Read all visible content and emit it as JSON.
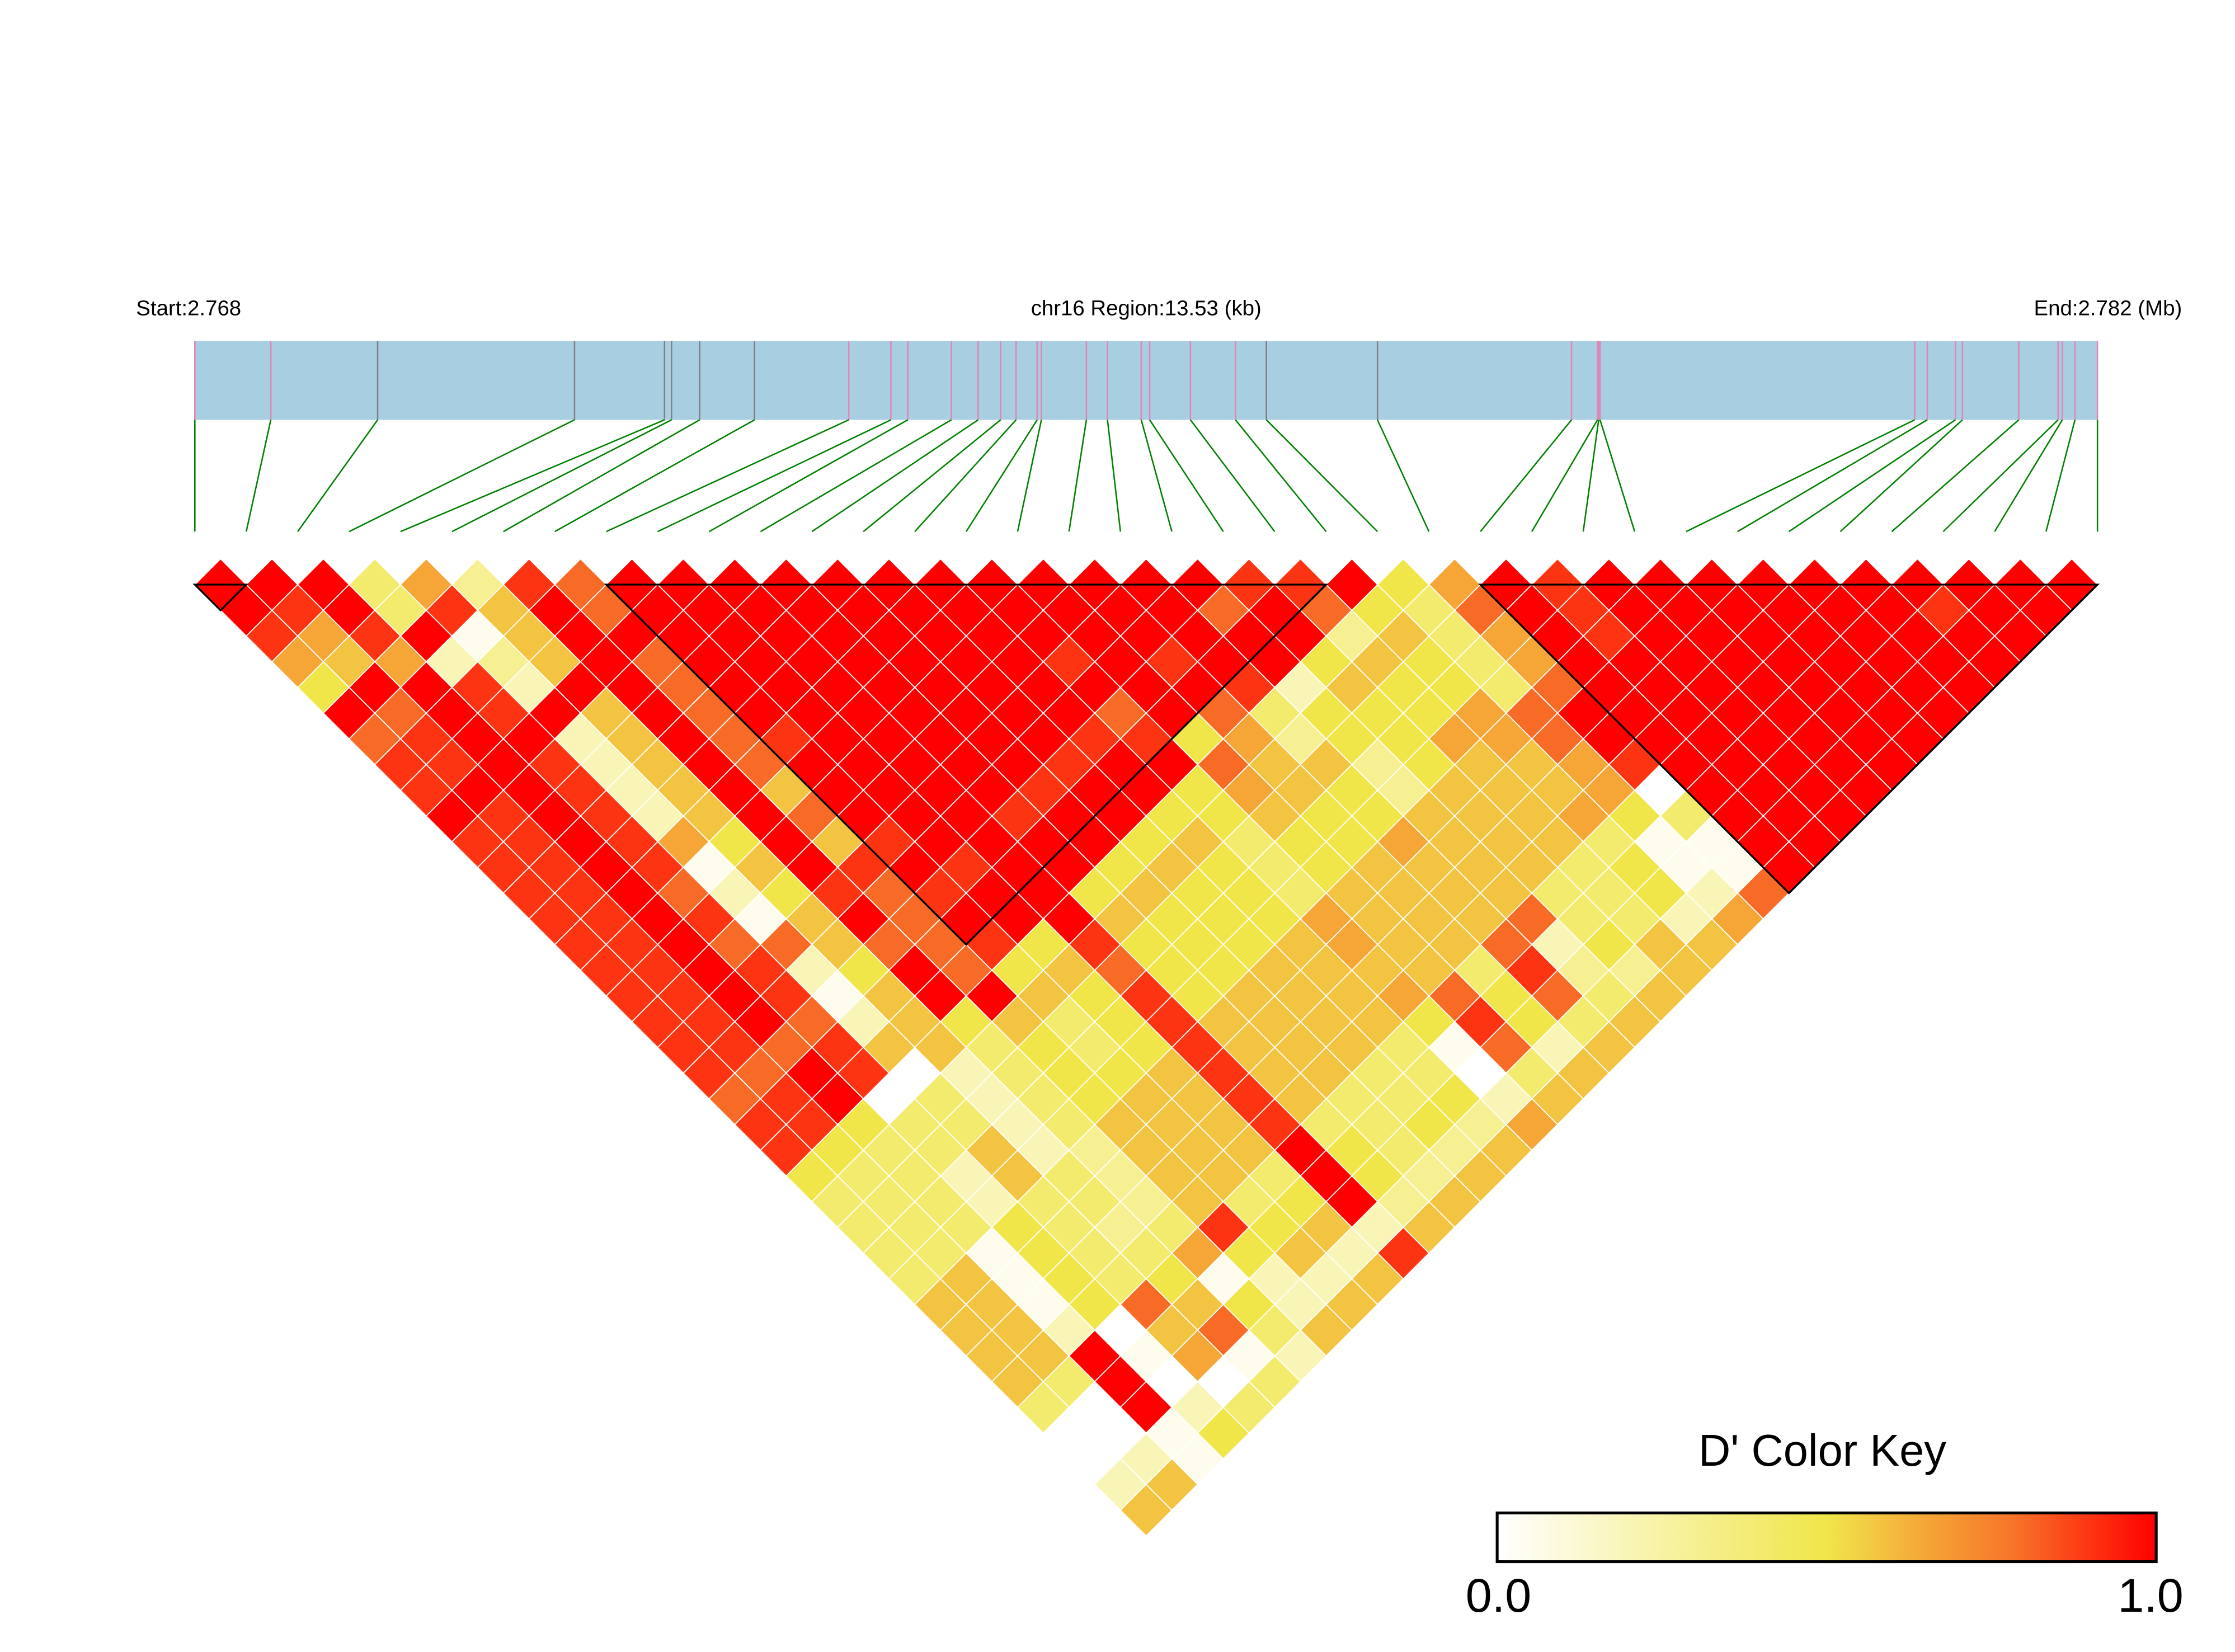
{
  "chart_data": {
    "type": "heatmap",
    "subtype": "linkage-disequilibrium triangle",
    "header": {
      "start_label": "Start:2.768",
      "region_label": "chr16 Region:13.53 (kb)",
      "end_label": "End:2.782 (Mb)"
    },
    "snp_positions_mb": [
      2.768,
      2.76854,
      2.7693,
      2.7707,
      2.77134,
      2.77139,
      2.77159,
      2.77198,
      2.77265,
      2.77295,
      2.77307,
      2.77338,
      2.77357,
      2.77373,
      2.77384,
      2.77399,
      2.77402,
      2.77434,
      2.77449,
      2.77473,
      2.77479,
      2.77508,
      2.7754,
      2.77562,
      2.77641,
      2.77779,
      2.777975,
      2.777983,
      2.777993,
      2.78023,
      2.78032,
      2.78052,
      2.78057,
      2.78097,
      2.78125,
      2.78128,
      2.78137,
      2.78153
    ],
    "tick_colors": [
      "#e384b6",
      "#e384b6",
      "#808080",
      "#808080",
      "#808080",
      "#808080",
      "#808080",
      "#808080",
      "#e384b6",
      "#e384b6",
      "#e384b6",
      "#e384b6",
      "#e384b6",
      "#e384b6",
      "#e384b6",
      "#e384b6",
      "#e384b6",
      "#e384b6",
      "#e384b6",
      "#e384b6",
      "#e384b6",
      "#e384b6",
      "#e384b6",
      "#808080",
      "#808080",
      "#e384b6",
      "#e384b6",
      "#e384b6",
      "#e384b6",
      "#e384b6",
      "#e384b6",
      "#e384b6",
      "#e384b6",
      "#e384b6",
      "#e384b6",
      "#e384b6",
      "#e384b6",
      "#e384b6"
    ],
    "gene_bar_color": "#a8cee2",
    "connector_color": "#008000",
    "dprime_by_snp_distance": [
      [
        1,
        1,
        1,
        0.4,
        0.65,
        0.3,
        0.9,
        0.8,
        1,
        1,
        1,
        1,
        1,
        1,
        1,
        1,
        1,
        1,
        1,
        1,
        0.9,
        0.9,
        1,
        0.5,
        0.65,
        1,
        0.9,
        1,
        1,
        1,
        1,
        1,
        1,
        1,
        1,
        1,
        1
      ],
      [
        1,
        0.9,
        1,
        0.4,
        0.9,
        0.58,
        1,
        0.8,
        1,
        1,
        1,
        1,
        1,
        1,
        1,
        1,
        1,
        1,
        1,
        0.8,
        1,
        0.8,
        0.5,
        0.4,
        0.8,
        1,
        0.9,
        1,
        1,
        1,
        1,
        1,
        1,
        0.9,
        1,
        1
      ],
      [
        0.9,
        0.65,
        0.9,
        1,
        0.05,
        0.58,
        1,
        1,
        1,
        1,
        1,
        1,
        1,
        1,
        1,
        1,
        1,
        1,
        1,
        1,
        1,
        0.3,
        0.58,
        0.4,
        0.65,
        1,
        0.9,
        1,
        1,
        1,
        1,
        1,
        1,
        1,
        1
      ],
      [
        0.65,
        0.58,
        0.65,
        0.2,
        0.3,
        0.58,
        1,
        0.8,
        1,
        1,
        1,
        1,
        1,
        1,
        1,
        0.9,
        1,
        0.9,
        1,
        1,
        0.5,
        0.58,
        0.5,
        0.4,
        0.65,
        1,
        1,
        1,
        1,
        1,
        1,
        1,
        1,
        1
      ],
      [
        0.5,
        1,
        1,
        0.9,
        0.2,
        1,
        1,
        0.8,
        1,
        1,
        1,
        1,
        1,
        1,
        1,
        1,
        1,
        1,
        0.9,
        0.2,
        0.58,
        0.5,
        0.5,
        0.4,
        0.8,
        1,
        1,
        1,
        1,
        1,
        1,
        1,
        1
      ],
      [
        1,
        0.8,
        1,
        0.9,
        1,
        0.58,
        1,
        0.8,
        1,
        1,
        1,
        1,
        1,
        1,
        1,
        0.8,
        1,
        0.8,
        0.4,
        0.5,
        0.5,
        0.5,
        0.65,
        0.8,
        1,
        1,
        1,
        1,
        1,
        1,
        1,
        1
      ],
      [
        0.8,
        0.9,
        1,
        1,
        0.2,
        0.58,
        1,
        0.8,
        0.9,
        1,
        1,
        1,
        1,
        1,
        0.9,
        0.9,
        0.5,
        0.65,
        0.3,
        0.5,
        0.5,
        0.65,
        0.65,
        0.8,
        1,
        1,
        1,
        1,
        1,
        1,
        1
      ],
      [
        0.9,
        0.9,
        1,
        0.9,
        0.2,
        0.58,
        1,
        0.8,
        1,
        1,
        1,
        1,
        1,
        0.9,
        1,
        1,
        0.8,
        0.58,
        0.58,
        0.3,
        0.5,
        0.58,
        0.58,
        0.65,
        0.9,
        1,
        1,
        1,
        1,
        1
      ],
      [
        0.9,
        1,
        1,
        0.9,
        0.2,
        0.58,
        1,
        0.58,
        1,
        1,
        1,
        1,
        0.9,
        1,
        1,
        0.5,
        0.65,
        0.58,
        0.5,
        0.3,
        0.58,
        0.58,
        0.58,
        0.65,
        0,
        1,
        1,
        1,
        1
      ],
      [
        1,
        0.9,
        1,
        0.9,
        0.2,
        0.58,
        1,
        0.8,
        1,
        1,
        1,
        0.9,
        1,
        1,
        0.5,
        0.5,
        0.58,
        0.5,
        0.5,
        0.58,
        0.58,
        0.58,
        0.65,
        0.5,
        0.4,
        1,
        1,
        1
      ],
      [
        0.9,
        0.9,
        1,
        0.9,
        0.65,
        0.5,
        1,
        0.58,
        0.9,
        1,
        1,
        1,
        1,
        0.5,
        0.58,
        0.4,
        0.5,
        0.5,
        0.65,
        0.58,
        0.58,
        0.58,
        0.4,
        0.05,
        0.05,
        1,
        1
      ],
      [
        0.9,
        0.9,
        1,
        0.9,
        0.05,
        0.58,
        1,
        0.9,
        1,
        0.9,
        1,
        1,
        0.5,
        0.58,
        0.5,
        0.4,
        0.5,
        0.58,
        0.58,
        0.58,
        0.58,
        0.4,
        0.5,
        0.05,
        0.05,
        1
      ],
      [
        0.9,
        0.9,
        1,
        0.8,
        0.2,
        0.5,
        0.9,
        0.8,
        0.9,
        1,
        1,
        0.5,
        0.58,
        0.5,
        0.5,
        0.4,
        0.58,
        0.58,
        0.58,
        0.58,
        0.4,
        0.4,
        0.5,
        0.2,
        0.8
      ],
      [
        0.9,
        0.9,
        1,
        0.9,
        0.05,
        0.58,
        1,
        0.8,
        1,
        1,
        1,
        0.58,
        0.5,
        0.5,
        0.5,
        0.65,
        0.58,
        0.58,
        0.58,
        0.8,
        0.4,
        0.4,
        0.2,
        0.65
      ],
      [
        0.9,
        0.9,
        1,
        0.8,
        0.8,
        0.58,
        0.8,
        0.8,
        0.9,
        0.5,
        0.9,
        0.5,
        0.5,
        0.5,
        0.58,
        0.65,
        0.58,
        0.58,
        0.8,
        0.2,
        0.5,
        0.58,
        0.58
      ],
      [
        0.9,
        0.9,
        1,
        0.9,
        0.2,
        0.5,
        1,
        0.8,
        0.5,
        0.58,
        0.8,
        0.5,
        0.5,
        0.58,
        0.58,
        0.58,
        0.58,
        0.4,
        0.9,
        0.3,
        0.3,
        0.58
      ],
      [
        0.9,
        0.9,
        1,
        0.9,
        0.05,
        0.58,
        1,
        1,
        0.58,
        0.5,
        0.9,
        0.5,
        0.58,
        0.58,
        0.58,
        0.65,
        0.8,
        0.5,
        0.8,
        0.4,
        0.58
      ],
      [
        0.9,
        0.9,
        1,
        0.8,
        0.2,
        0.58,
        0.5,
        0.58,
        0.4,
        0.5,
        0.9,
        0.58,
        0.58,
        0.58,
        0.58,
        0.5,
        0.9,
        0.5,
        0.4,
        0.58
      ],
      [
        0.9,
        0.9,
        0.8,
        0.9,
        0.58,
        0.58,
        0.4,
        0.5,
        0.4,
        0.5,
        0.9,
        0.58,
        0.58,
        0.58,
        0.4,
        0.05,
        0.8,
        0.2,
        0.58
      ],
      [
        0.9,
        0.8,
        1,
        0.9,
        0,
        0.2,
        0.4,
        0.5,
        0.5,
        0.58,
        0.9,
        0.58,
        0.58,
        0.4,
        0.4,
        0,
        0.4,
        0.58
      ],
      [
        0.8,
        0.9,
        1,
        0,
        0.4,
        0.2,
        0.4,
        0.5,
        0.58,
        0.58,
        0.9,
        0.58,
        0.4,
        0.4,
        0.5,
        0.2,
        0.58
      ],
      [
        0.9,
        0.9,
        0.5,
        0.4,
        0.4,
        0.2,
        0.4,
        0.58,
        0.58,
        0.58,
        0.9,
        0.4,
        0.4,
        0.5,
        0.3,
        0.65
      ],
      [
        0.9,
        0.5,
        0.4,
        0.4,
        0.58,
        0.2,
        0.3,
        0.58,
        0.58,
        0.58,
        1,
        0.5,
        0.4,
        0.3,
        0.58
      ],
      [
        0.5,
        0.4,
        0.4,
        0.2,
        0.58,
        0.4,
        0.3,
        0.58,
        0.58,
        0.4,
        1,
        0.5,
        0.3,
        0.58
      ],
      [
        0.4,
        0.4,
        0.4,
        0.2,
        0.4,
        0.4,
        0.3,
        0.58,
        0.4,
        0.5,
        1,
        0.3,
        0.58
      ],
      [
        0.4,
        0.4,
        0.4,
        0.5,
        0.4,
        0.3,
        0.4,
        0.9,
        0.5,
        0.58,
        0.2,
        0.58
      ],
      [
        0.4,
        0.4,
        0.05,
        0.5,
        0.4,
        0.4,
        0.65,
        0.5,
        0.58,
        0.2,
        0.9
      ],
      [
        0.4,
        0.58,
        0.05,
        0.5,
        0.4,
        0.5,
        0.05,
        0.2,
        0.2,
        0.58
      ],
      [
        0.58,
        0.58,
        0.05,
        0.5,
        0.8,
        0.58,
        0.5,
        0.2,
        0.58
      ],
      [
        0.58,
        0.58,
        0.2,
        0,
        0.58,
        0.8,
        0.4,
        0.58
      ],
      [
        0.58,
        0.58,
        1,
        0.05,
        0.65,
        0.05,
        0.2
      ],
      [
        0.58,
        0.4,
        1,
        0,
        0,
        0.4
      ],
      [
        0.4,
        0,
        1,
        0.2,
        0.4
      ],
      [
        0,
        0,
        0.05,
        0.5
      ],
      [
        0,
        0.2,
        0.05
      ],
      [
        0.2,
        0.58
      ],
      [
        0.58
      ]
    ],
    "haplotype_blocks": [
      [
        0,
        1
      ],
      [
        8,
        22
      ],
      [
        25,
        37
      ]
    ],
    "color_key": {
      "title": "D' Color Key",
      "min_label": "0.0",
      "max_label": "1.0",
      "range": [
        0,
        1
      ],
      "stops": [
        {
          "value": 0.0,
          "color": "#ffffff"
        },
        {
          "value": 0.5,
          "color": "#f0e64a"
        },
        {
          "value": 0.57,
          "color": "#f3c843"
        },
        {
          "value": 0.65,
          "color": "#f5a636"
        },
        {
          "value": 0.78,
          "color": "#f7762a"
        },
        {
          "value": 0.9,
          "color": "#fd3412"
        },
        {
          "value": 1.0,
          "color": "#ff0000"
        }
      ]
    }
  }
}
